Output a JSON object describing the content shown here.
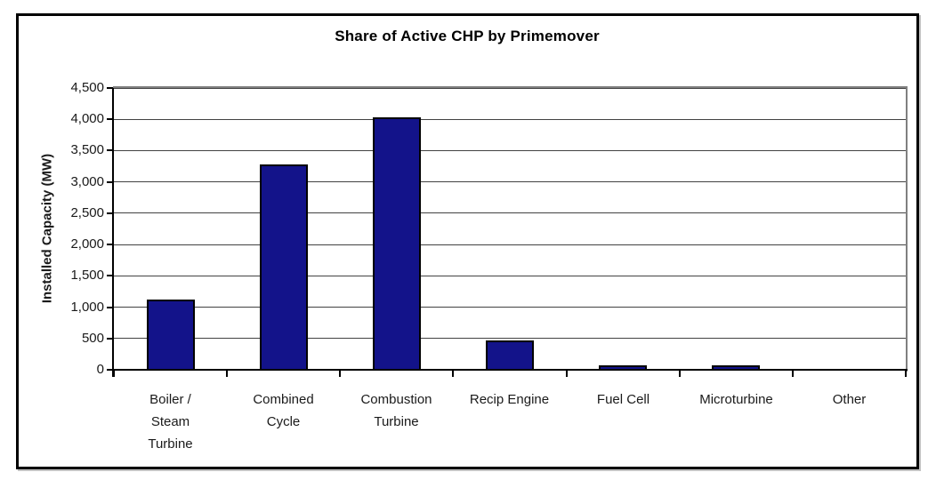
{
  "title": "Share of Active CHP by Primemover",
  "colors": {
    "background": "#FFFFFF",
    "frame_border": "#000000",
    "plot_border": "#808080",
    "gridline": "#424242",
    "axis_line": "#000000",
    "bar_fill": "#13138A",
    "bar_border": "#000000",
    "text": "#1A1A1A"
  },
  "chart_data": {
    "type": "bar",
    "title": "Share of Active CHP by Primemover",
    "xlabel": "",
    "ylabel": "Installed Capacity (MW)",
    "categories": [
      "Boiler / Steam Turbine",
      "Combined Cycle",
      "Combustion Turbine",
      "Recip Engine",
      "Fuel Cell",
      "Microturbine",
      "Other"
    ],
    "category_display": [
      [
        "Boiler /",
        "Steam",
        "Turbine"
      ],
      [
        "Combined",
        "Cycle"
      ],
      [
        "Combustion",
        "Turbine"
      ],
      [
        "Recip Engine"
      ],
      [
        "Fuel Cell"
      ],
      [
        "Microturbine"
      ],
      [
        "Other"
      ]
    ],
    "values": [
      1100,
      3250,
      4000,
      440,
      40,
      40,
      0
    ],
    "ylim": [
      0,
      4500
    ],
    "ytick_step": 500,
    "ytick_labels": [
      "0",
      "500",
      "1,000",
      "1,500",
      "2,000",
      "2,500",
      "3,000",
      "3,500",
      "4,000",
      "4,500"
    ],
    "grid": true,
    "legend": false
  }
}
